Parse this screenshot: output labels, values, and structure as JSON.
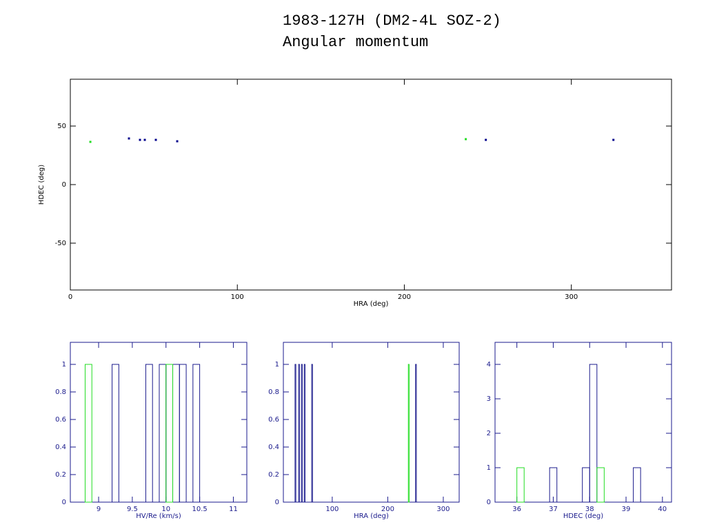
{
  "chart_data": [
    {
      "type": "scatter",
      "title": "1983-127H (DM2-4L SOZ-2)",
      "subtitle": "Angular momentum",
      "x_label": "HRA (deg)",
      "y_label": "HDEC (deg)",
      "xlim": [
        0,
        360
      ],
      "ylim": [
        -90,
        90
      ],
      "xticks": [
        0,
        100,
        200,
        300
      ],
      "yticks": [
        -50,
        0,
        50
      ],
      "axis_color": "#000000",
      "series": [
        {
          "color": "#00008b",
          "x": [
            35.1,
            41.7,
            44.6,
            51.2,
            64,
            248.8,
            325.2
          ],
          "values": [
            39.4,
            38.2,
            38.2,
            38.2,
            37,
            38.2,
            38.2
          ]
        },
        {
          "color": "#22dd22",
          "x": [
            12,
            236.8
          ],
          "values": [
            36.5,
            38.8
          ]
        }
      ]
    },
    {
      "type": "histogram",
      "x_label": "HV/Re (km/s)",
      "xlim": [
        8.58,
        11.2
      ],
      "ylim": [
        0,
        1.16
      ],
      "xticks": [
        9,
        9.5,
        10,
        10.5,
        11
      ],
      "yticks": [
        0,
        0.2,
        0.4,
        0.6,
        0.8,
        1
      ],
      "axis_color": "#1a1a8c",
      "series": [
        {
          "color": "#1a1a8c",
          "bins": [
            9.2,
            9.3,
            9.4,
            9.5,
            9.6,
            9.7,
            9.8,
            9.9,
            10.0,
            10.1,
            10.2,
            10.3,
            10.4,
            10.5
          ],
          "values": [
            1,
            0,
            0,
            0,
            0,
            1,
            0,
            1,
            1,
            1,
            1,
            0,
            1
          ]
        },
        {
          "color": "#22dd22",
          "bins": [
            8.8,
            8.9,
            10.0,
            10.1
          ],
          "values": [
            1,
            0,
            1
          ]
        }
      ]
    },
    {
      "type": "histogram",
      "x_label": "HRA (deg)",
      "xlim": [
        12,
        328.6
      ],
      "ylim": [
        0,
        1.16
      ],
      "xticks": [
        100,
        200,
        300
      ],
      "yticks": [
        0,
        0.2,
        0.4,
        0.6,
        0.8,
        1
      ],
      "axis_color": "#1a1a8c",
      "series": [
        {
          "color": "#1a1a8c",
          "bins": [
            33,
            34.5,
            39.5,
            41,
            44.5,
            46,
            49.5,
            51,
            63,
            64.5,
            250,
            251.5
          ],
          "values": [
            1,
            0,
            1,
            0,
            1,
            0,
            1,
            0,
            1,
            0,
            1
          ]
        },
        {
          "color": "#22dd22",
          "bins": [
            237,
            238.5
          ],
          "values": [
            1
          ]
        }
      ]
    },
    {
      "type": "histogram",
      "x_label": "HDEC (deg)",
      "xlim": [
        35.4,
        40.25
      ],
      "ylim": [
        0,
        4.64
      ],
      "xticks": [
        36,
        37,
        38,
        39,
        40
      ],
      "yticks": [
        0,
        1,
        2,
        3,
        4
      ],
      "axis_color": "#1a1a8c",
      "series": [
        {
          "color": "#1a1a8c",
          "bins": [
            36.9,
            37.1,
            37.8,
            38.0,
            38.2,
            39.2,
            39.4
          ],
          "values": [
            1,
            0,
            1,
            4,
            0,
            1
          ]
        },
        {
          "color": "#22dd22",
          "bins": [
            36.0,
            36.2,
            38.2,
            38.4
          ],
          "values": [
            1,
            0,
            1
          ]
        }
      ]
    }
  ]
}
